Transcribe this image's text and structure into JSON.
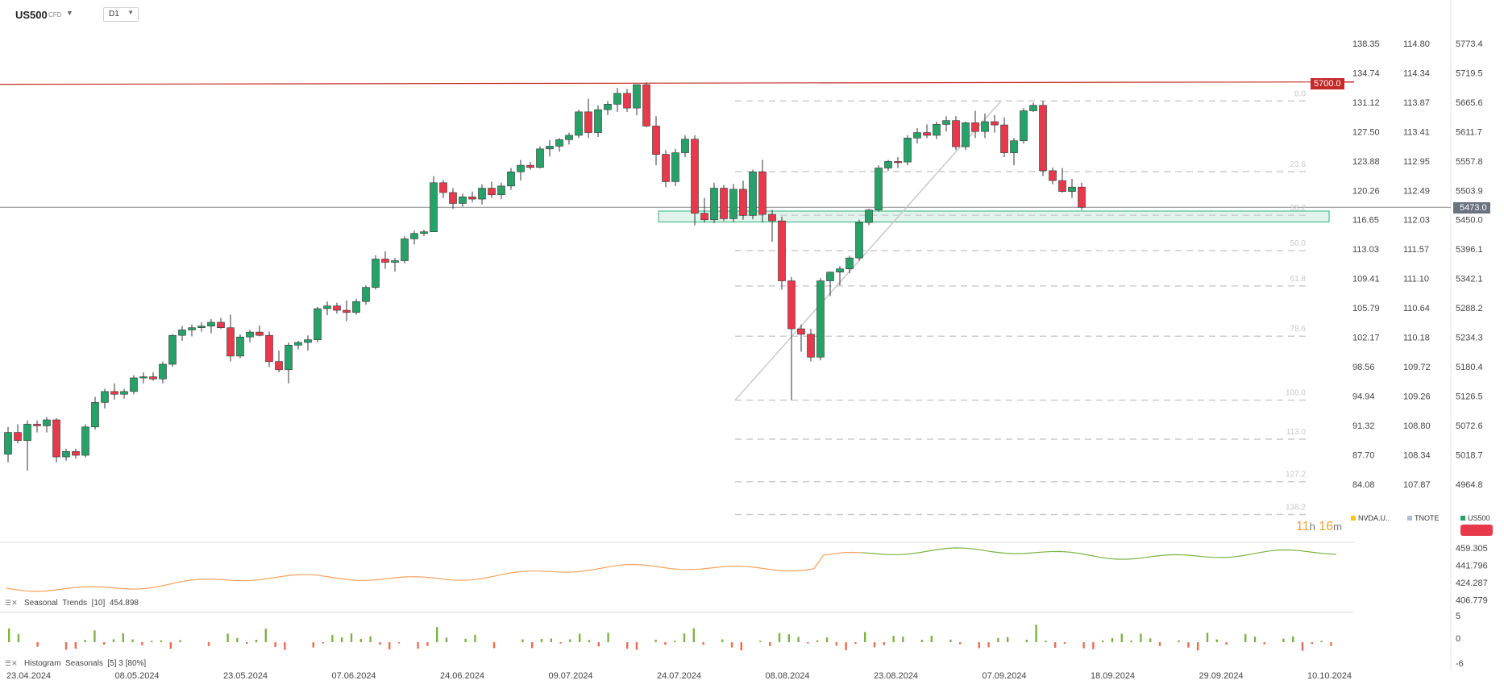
{
  "header": {
    "symbol": "US500",
    "symbol_type": "CFD",
    "timeframe": "D1"
  },
  "countdown": {
    "hours": "11",
    "h_unit": "h",
    "minutes": "16",
    "m_unit": "m"
  },
  "legend": [
    {
      "name": "NVDA.U..",
      "color": "#f3c623"
    },
    {
      "name": "TNOTE",
      "color": "#b8bcd6"
    },
    {
      "name": "US500",
      "color": "#26a269"
    }
  ],
  "price_tags": {
    "resistance": "5700.0",
    "last": "5473.0"
  },
  "colors": {
    "up": "#26a269",
    "down": "#e8394c",
    "resistance": "#c62828",
    "zone": "#2db37a",
    "fib": "#cccccc"
  },
  "axes": {
    "us500": [
      "5773.4",
      "5719.5",
      "5665.6",
      "5611.7",
      "5557.8",
      "5503.9",
      "5450.0",
      "5396.1",
      "5342.1",
      "5288.2",
      "5234.3",
      "5180.4",
      "5126.5",
      "5072.6",
      "5018.7",
      "4964.8"
    ],
    "tnote": [
      "114.80",
      "114.34",
      "113.87",
      "113.41",
      "112.95",
      "112.49",
      "112.03",
      "111.57",
      "111.10",
      "110.64",
      "110.18",
      "109.72",
      "109.26",
      "108.80",
      "108.34",
      "107.87"
    ],
    "nvda": [
      "138.35",
      "134.74",
      "131.12",
      "127.50",
      "123.88",
      "120.26",
      "116.65",
      "113.03",
      "109.41",
      "105.79",
      "102.17",
      "98.56",
      "94.94",
      "91.32",
      "87.70",
      "84.08"
    ],
    "dates": [
      "23.04.2024",
      "08.05.2024",
      "23.05.2024",
      "07.06.2024",
      "24.06.2024",
      "09.07.2024",
      "24.07.2024",
      "08.08.2024",
      "23.08.2024",
      "07.09.2024",
      "18.09.2024",
      "29.09.2024",
      "10.10.2024"
    ]
  },
  "fib_labels": [
    "0.0",
    "23.6",
    "38.2",
    "50.0",
    "61.8",
    "78.6",
    "100.0",
    "113.0",
    "127.2",
    "138.2"
  ],
  "seasonal_pane": {
    "title": "Seasonal",
    "indicator": "Trends",
    "params": "[10]",
    "value": "454.898",
    "axis": [
      "459.305",
      "441.796",
      "424.287",
      "406.779"
    ]
  },
  "histogram_pane": {
    "title": "Histogram",
    "indicator": "Seasonals",
    "params": "[5] 3 [80%]",
    "axis": [
      "5",
      "0",
      "-6"
    ]
  },
  "chart_data": {
    "type": "candlestick",
    "symbol": "US500",
    "timeframe": "D1",
    "ylim": [
      4930,
      5800
    ],
    "resistance": 5700.0,
    "last_price": 5473.0,
    "support_zone": [
      5446,
      5466
    ],
    "fib_retracement": {
      "high": 5668,
      "low": 5119,
      "levels": [
        0.0,
        23.6,
        38.2,
        50.0,
        61.8,
        78.6,
        100.0,
        113.0,
        127.2,
        138.2
      ]
    },
    "candles": [
      [
        5020,
        5070,
        5005,
        5060
      ],
      [
        5060,
        5075,
        5040,
        5045
      ],
      [
        5045,
        5082,
        4990,
        5075
      ],
      [
        5075,
        5082,
        5060,
        5072
      ],
      [
        5072,
        5088,
        5060,
        5083
      ],
      [
        5083,
        5086,
        5005,
        5015
      ],
      [
        5015,
        5030,
        5008,
        5025
      ],
      [
        5025,
        5030,
        5012,
        5018
      ],
      [
        5018,
        5075,
        5014,
        5070
      ],
      [
        5070,
        5125,
        5065,
        5115
      ],
      [
        5115,
        5140,
        5104,
        5135
      ],
      [
        5135,
        5150,
        5120,
        5130
      ],
      [
        5130,
        5140,
        5122,
        5135
      ],
      [
        5135,
        5165,
        5130,
        5160
      ],
      [
        5160,
        5170,
        5150,
        5162
      ],
      [
        5162,
        5170,
        5155,
        5158
      ],
      [
        5158,
        5190,
        5150,
        5185
      ],
      [
        5185,
        5240,
        5180,
        5238
      ],
      [
        5238,
        5255,
        5228,
        5248
      ],
      [
        5248,
        5258,
        5236,
        5252
      ],
      [
        5252,
        5262,
        5245,
        5255
      ],
      [
        5255,
        5268,
        5242,
        5262
      ],
      [
        5262,
        5270,
        5250,
        5252
      ],
      [
        5252,
        5276,
        5190,
        5200
      ],
      [
        5200,
        5240,
        5196,
        5235
      ],
      [
        5235,
        5248,
        5225,
        5244
      ],
      [
        5244,
        5256,
        5236,
        5238
      ],
      [
        5238,
        5245,
        5180,
        5190
      ],
      [
        5190,
        5210,
        5170,
        5175
      ],
      [
        5175,
        5225,
        5150,
        5220
      ],
      [
        5220,
        5228,
        5212,
        5225
      ],
      [
        5225,
        5238,
        5210,
        5230
      ],
      [
        5230,
        5290,
        5225,
        5287
      ],
      [
        5287,
        5300,
        5275,
        5292
      ],
      [
        5292,
        5298,
        5278,
        5284
      ],
      [
        5284,
        5302,
        5264,
        5280
      ],
      [
        5280,
        5305,
        5276,
        5300
      ],
      [
        5300,
        5330,
        5294,
        5326
      ],
      [
        5326,
        5385,
        5322,
        5378
      ],
      [
        5378,
        5392,
        5360,
        5372
      ],
      [
        5372,
        5380,
        5355,
        5375
      ],
      [
        5375,
        5420,
        5370,
        5415
      ],
      [
        5415,
        5430,
        5405,
        5425
      ],
      [
        5425,
        5432,
        5420,
        5428
      ],
      [
        5428,
        5530,
        5430,
        5518
      ],
      [
        5518,
        5523,
        5490,
        5500
      ],
      [
        5500,
        5508,
        5470,
        5480
      ],
      [
        5480,
        5498,
        5474,
        5492
      ],
      [
        5492,
        5502,
        5482,
        5488
      ],
      [
        5488,
        5515,
        5478,
        5508
      ],
      [
        5508,
        5520,
        5490,
        5496
      ],
      [
        5496,
        5518,
        5488,
        5512
      ],
      [
        5512,
        5545,
        5505,
        5538
      ],
      [
        5538,
        5560,
        5522,
        5550
      ],
      [
        5550,
        5556,
        5542,
        5546
      ],
      [
        5546,
        5585,
        5544,
        5580
      ],
      [
        5580,
        5596,
        5566,
        5585
      ],
      [
        5585,
        5600,
        5575,
        5597
      ],
      [
        5597,
        5610,
        5588,
        5605
      ],
      [
        5605,
        5652,
        5600,
        5648
      ],
      [
        5648,
        5672,
        5600,
        5610
      ],
      [
        5610,
        5660,
        5602,
        5652
      ],
      [
        5652,
        5668,
        5642,
        5662
      ],
      [
        5662,
        5692,
        5648,
        5682
      ],
      [
        5682,
        5690,
        5648,
        5655
      ],
      [
        5655,
        5698,
        5642,
        5698
      ],
      [
        5698,
        5702,
        5620,
        5622
      ],
      [
        5622,
        5640,
        5550,
        5570
      ],
      [
        5570,
        5578,
        5510,
        5520
      ],
      [
        5520,
        5580,
        5512,
        5573
      ],
      [
        5573,
        5605,
        5565,
        5598
      ],
      [
        5598,
        5605,
        5440,
        5462
      ],
      [
        5462,
        5490,
        5445,
        5450
      ],
      [
        5450,
        5518,
        5444,
        5508
      ],
      [
        5508,
        5514,
        5448,
        5452
      ],
      [
        5452,
        5516,
        5446,
        5506
      ],
      [
        5506,
        5522,
        5450,
        5458
      ],
      [
        5458,
        5542,
        5451,
        5538
      ],
      [
        5538,
        5560,
        5445,
        5460
      ],
      [
        5460,
        5468,
        5410,
        5448
      ],
      [
        5448,
        5456,
        5322,
        5338
      ],
      [
        5338,
        5345,
        5119,
        5250
      ],
      [
        5250,
        5258,
        5208,
        5240
      ],
      [
        5240,
        5250,
        5190,
        5198
      ],
      [
        5198,
        5343,
        5192,
        5338
      ],
      [
        5338,
        5355,
        5310,
        5354
      ],
      [
        5354,
        5365,
        5330,
        5360
      ],
      [
        5360,
        5384,
        5352,
        5380
      ],
      [
        5380,
        5450,
        5375,
        5445
      ],
      [
        5445,
        5470,
        5440,
        5468
      ],
      [
        5468,
        5550,
        5465,
        5545
      ],
      [
        5545,
        5560,
        5540,
        5557
      ],
      [
        5557,
        5565,
        5545,
        5556
      ],
      [
        5556,
        5605,
        5550,
        5600
      ],
      [
        5600,
        5618,
        5590,
        5610
      ],
      [
        5610,
        5625,
        5600,
        5605
      ],
      [
        5605,
        5630,
        5598,
        5625
      ],
      [
        5625,
        5640,
        5612,
        5632
      ],
      [
        5632,
        5640,
        5578,
        5584
      ],
      [
        5584,
        5630,
        5578,
        5628
      ],
      [
        5628,
        5650,
        5600,
        5612
      ],
      [
        5612,
        5645,
        5600,
        5630
      ],
      [
        5630,
        5642,
        5610,
        5624
      ],
      [
        5624,
        5638,
        5565,
        5573
      ],
      [
        5573,
        5600,
        5550,
        5595
      ],
      [
        5595,
        5655,
        5590,
        5650
      ],
      [
        5650,
        5665,
        5648,
        5660
      ],
      [
        5660,
        5668,
        5530,
        5540
      ],
      [
        5540,
        5546,
        5515,
        5522
      ],
      [
        5522,
        5545,
        5500,
        5502
      ],
      [
        5502,
        5525,
        5490,
        5510
      ],
      [
        5510,
        5518,
        5468,
        5473
      ]
    ]
  }
}
